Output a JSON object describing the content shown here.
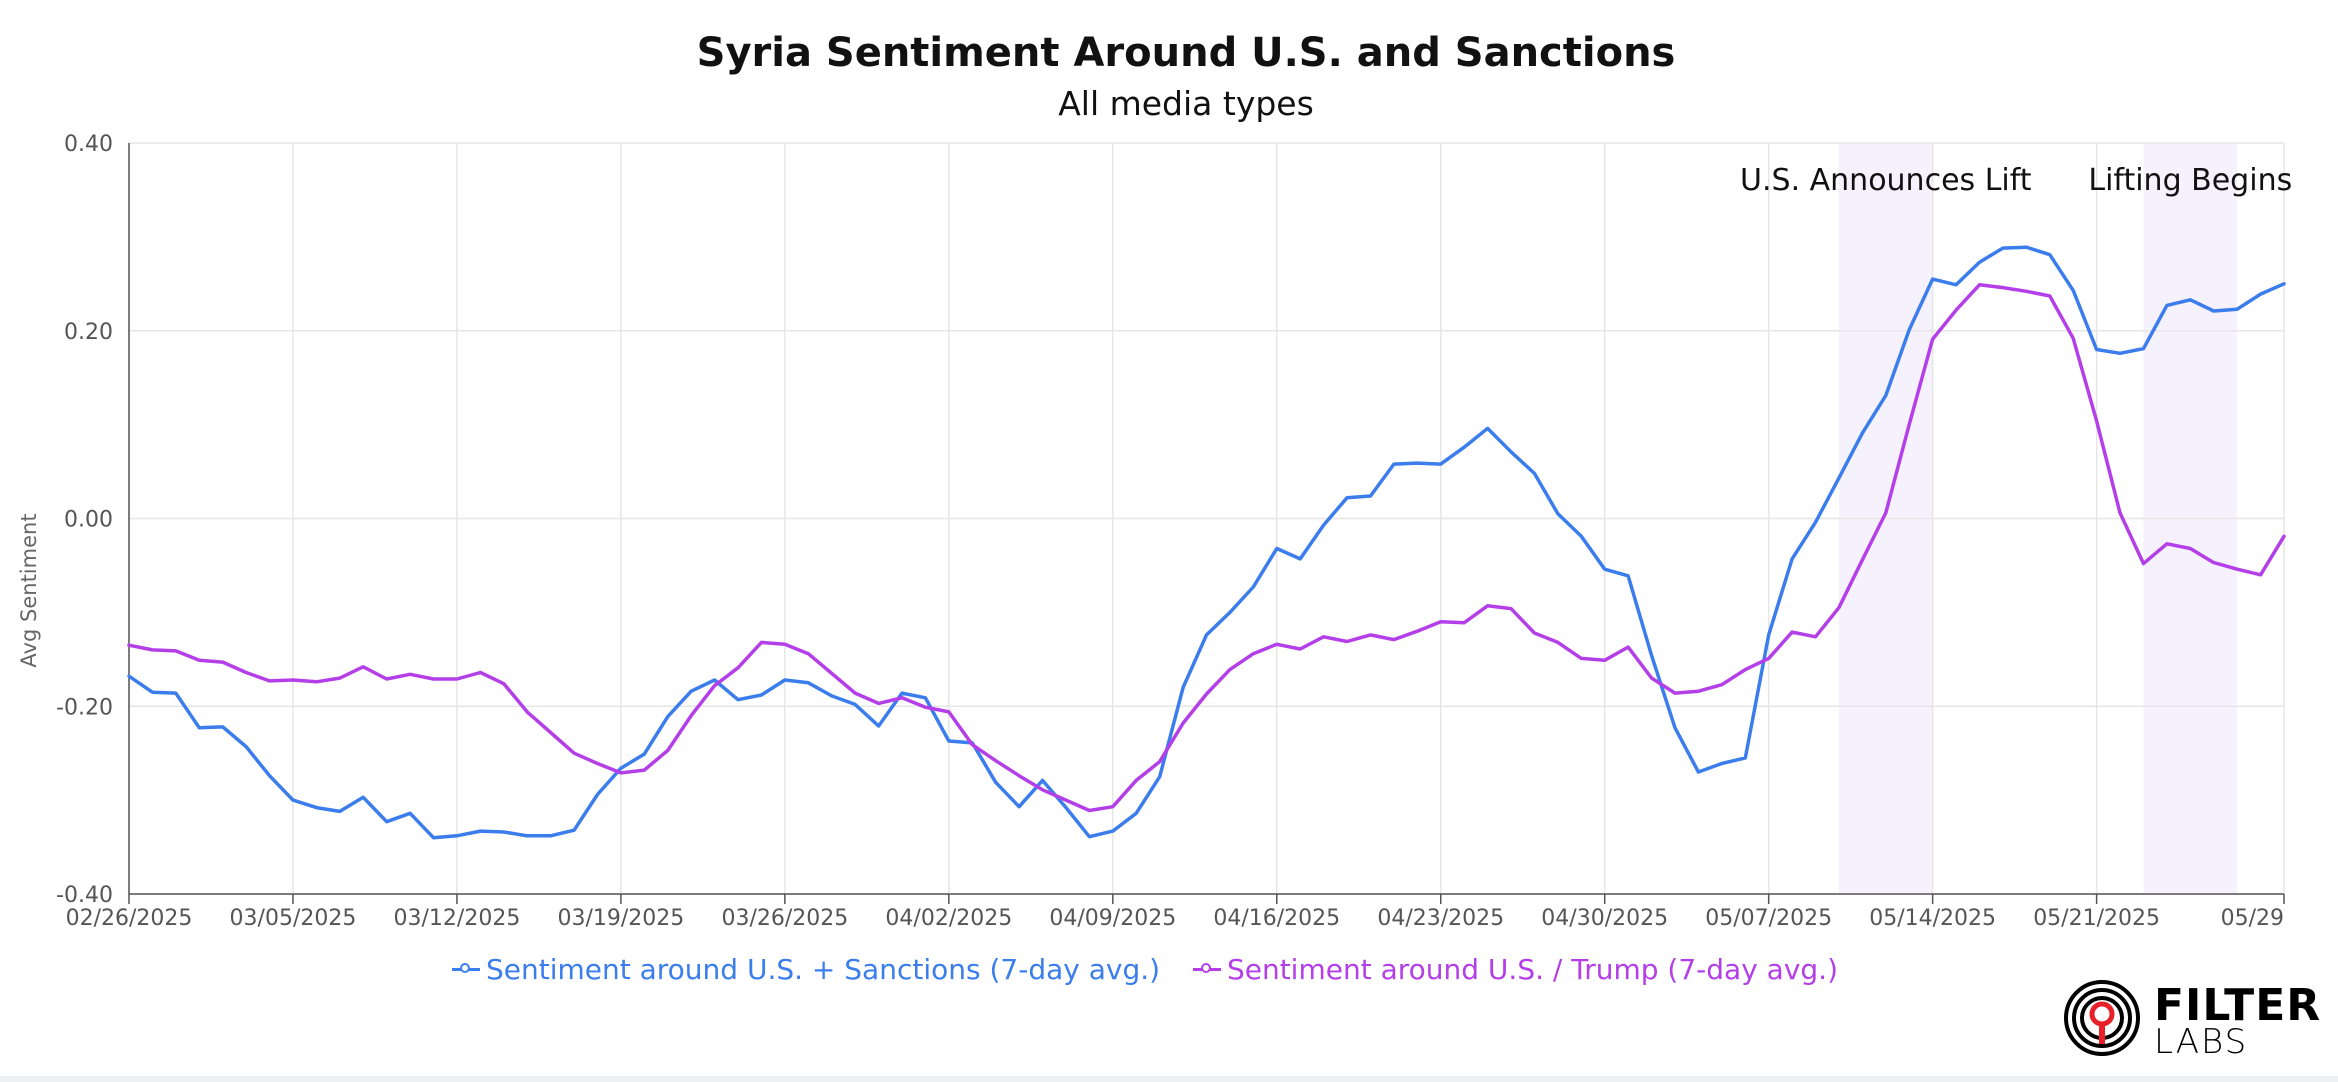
{
  "chart_data": {
    "type": "line",
    "title": "Syria Sentiment Around U.S. and Sanctions",
    "subtitle": "All media types",
    "ylabel": "Avg Sentiment",
    "ylim": [
      -0.4,
      0.4
    ],
    "yticks": [
      0.4,
      0.2,
      0.0,
      -0.2,
      -0.4
    ],
    "ytick_labels": [
      "0.40",
      "0.20",
      "0.00",
      "-0.20",
      "-0.40"
    ],
    "x_start": "02/26/2025",
    "x_end": "05/29/2025",
    "xtick_labels": [
      "02/26/2025",
      "03/05/2025",
      "03/12/2025",
      "03/19/2025",
      "03/26/2025",
      "04/02/2025",
      "04/09/2025",
      "04/16/2025",
      "04/23/2025",
      "04/30/2025",
      "05/07/2025",
      "05/14/2025",
      "05/21/2025",
      "05/29"
    ],
    "xtick_dates": [
      "2025-02-26",
      "2025-03-05",
      "2025-03-12",
      "2025-03-19",
      "2025-03-26",
      "2025-04-02",
      "2025-04-09",
      "2025-04-16",
      "2025-04-23",
      "2025-04-30",
      "2025-05-07",
      "2025-05-14",
      "2025-05-21",
      "2025-05-29"
    ],
    "grid": true,
    "legend_position": "bottom",
    "bands": [
      {
        "label": "U.S. Announces Lift",
        "start": "2025-05-10",
        "end": "2025-05-14"
      },
      {
        "label": "Lifting Begins",
        "start": "2025-05-23",
        "end": "2025-05-27"
      }
    ],
    "series": [
      {
        "name": "Sentiment around U.S. + Sanctions (7-day avg.)",
        "color": "#3b7ded",
        "values": [
          -0.168,
          -0.185,
          -0.186,
          -0.223,
          -0.222,
          -0.243,
          -0.274,
          -0.3,
          -0.308,
          -0.312,
          -0.297,
          -0.323,
          -0.314,
          -0.34,
          -0.338,
          -0.333,
          -0.334,
          -0.338,
          -0.338,
          -0.332,
          -0.294,
          -0.266,
          -0.251,
          -0.211,
          -0.184,
          -0.172,
          -0.193,
          -0.188,
          -0.172,
          -0.175,
          -0.189,
          -0.198,
          -0.221,
          -0.186,
          -0.191,
          -0.237,
          -0.239,
          -0.281,
          -0.307,
          -0.279,
          -0.308,
          -0.339,
          -0.333,
          -0.314,
          -0.275,
          -0.18,
          -0.124,
          -0.1,
          -0.073,
          -0.032,
          -0.043,
          -0.007,
          0.022,
          0.024,
          0.058,
          0.059,
          0.058,
          0.076,
          0.096,
          0.071,
          0.048,
          0.005,
          -0.019,
          -0.054,
          -0.061,
          -0.146,
          -0.223,
          -0.27,
          -0.261,
          -0.255,
          -0.124,
          -0.043,
          -0.004,
          0.043,
          0.091,
          0.131,
          0.201,
          0.255,
          0.249,
          0.273,
          0.288,
          0.289,
          0.281,
          0.243,
          0.18,
          0.176,
          0.181,
          0.227,
          0.233,
          0.221,
          0.223,
          0.239,
          0.25
        ]
      },
      {
        "name": "Sentiment around U.S. / Trump (7-day avg.)",
        "color": "#b43fe8",
        "values": [
          -0.135,
          -0.14,
          -0.141,
          -0.151,
          -0.153,
          -0.164,
          -0.173,
          -0.172,
          -0.174,
          -0.17,
          -0.158,
          -0.171,
          -0.166,
          -0.171,
          -0.171,
          -0.164,
          -0.176,
          -0.206,
          -0.228,
          -0.25,
          -0.261,
          -0.271,
          -0.268,
          -0.247,
          -0.21,
          -0.178,
          -0.159,
          -0.132,
          -0.134,
          -0.144,
          -0.165,
          -0.186,
          -0.197,
          -0.191,
          -0.201,
          -0.206,
          -0.241,
          -0.258,
          -0.274,
          -0.289,
          -0.3,
          -0.311,
          -0.307,
          -0.279,
          -0.259,
          -0.218,
          -0.187,
          -0.161,
          -0.144,
          -0.134,
          -0.139,
          -0.126,
          -0.131,
          -0.124,
          -0.129,
          -0.12,
          -0.11,
          -0.111,
          -0.093,
          -0.096,
          -0.122,
          -0.132,
          -0.149,
          -0.151,
          -0.137,
          -0.17,
          -0.186,
          -0.184,
          -0.177,
          -0.161,
          -0.149,
          -0.121,
          -0.126,
          -0.095,
          -0.044,
          0.006,
          0.1,
          0.191,
          0.222,
          0.249,
          0.246,
          0.242,
          0.237,
          0.192,
          0.104,
          0.006,
          -0.048,
          -0.027,
          -0.032,
          -0.047,
          -0.054,
          -0.06,
          -0.019
        ]
      }
    ]
  },
  "logo": {
    "line1": "FILTER",
    "line2": "LABS",
    "accent_color": "#e8202a"
  }
}
